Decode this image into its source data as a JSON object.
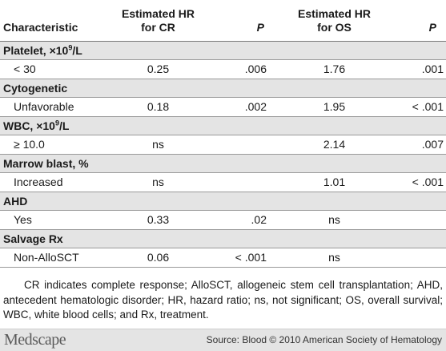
{
  "headers": {
    "characteristic": "Characteristic",
    "hr_cr_line1": "Estimated HR",
    "hr_cr_line2": "for CR",
    "p1": "P",
    "hr_os_line1": "Estimated HR",
    "hr_os_line2": "for OS",
    "p2": "P"
  },
  "groups": [
    {
      "title_main": "Platelet, ×10",
      "title_sup": "9",
      "title_tail": "/L",
      "row": {
        "label": "< 30",
        "hr_cr": "0.25",
        "p_cr": ".006",
        "hr_os": "1.76",
        "p_os": ".001"
      }
    },
    {
      "title_main": "Cytogenetic",
      "title_sup": "",
      "title_tail": "",
      "row": {
        "label": "Unfavorable",
        "hr_cr": "0.18",
        "p_cr": ".002",
        "hr_os": "1.95",
        "p_os": "< .001"
      }
    },
    {
      "title_main": "WBC, ×10",
      "title_sup": "9",
      "title_tail": "/L",
      "row": {
        "label": "≥ 10.0",
        "hr_cr": "ns",
        "p_cr": "",
        "hr_os": "2.14",
        "p_os": ".007"
      }
    },
    {
      "title_main": "Marrow blast, %",
      "title_sup": "",
      "title_tail": "",
      "row": {
        "label": "Increased",
        "hr_cr": "ns",
        "p_cr": "",
        "hr_os": "1.01",
        "p_os": "< .001"
      }
    },
    {
      "title_main": "AHD",
      "title_sup": "",
      "title_tail": "",
      "row": {
        "label": "Yes",
        "hr_cr": "0.33",
        "p_cr": ".02",
        "hr_os": "ns",
        "p_os": ""
      }
    },
    {
      "title_main": "Salvage Rx",
      "title_sup": "",
      "title_tail": "",
      "row": {
        "label": "Non-AlloSCT",
        "hr_cr": "0.06",
        "p_cr": "< .001",
        "hr_os": "ns",
        "p_os": ""
      }
    }
  ],
  "footnote": "CR indicates complete response; AlloSCT, allogeneic stem cell transplantation; AHD, antecedent hematologic disorder; HR, hazard ratio; ns, not significant; OS, overall survival; WBC, white blood cells; and Rx, treatment.",
  "footer": {
    "brand": "Medscape",
    "source": "Source: Blood © 2010 American Society of Hematology"
  }
}
